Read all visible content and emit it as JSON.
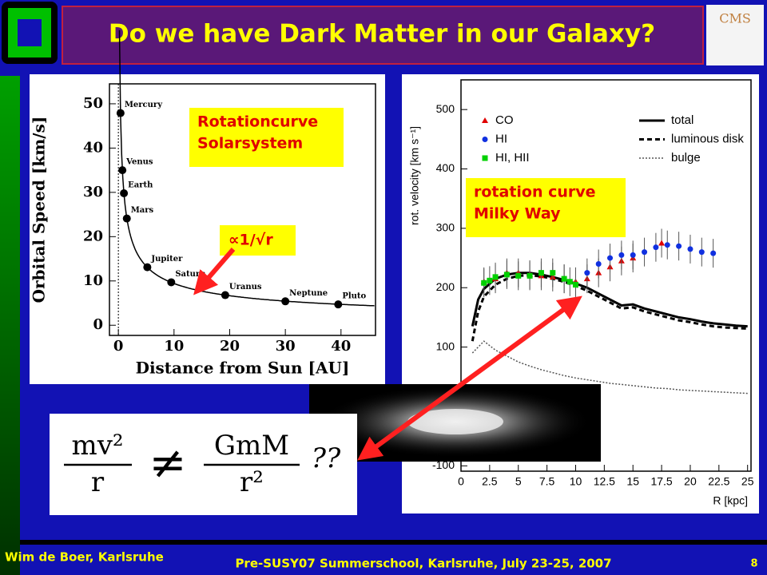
{
  "slide": {
    "title": "Do we have Dark Matter in our Galaxy?",
    "logo_text": "CMS",
    "footer": {
      "author": "Wim de Boer, Karlsruhe",
      "event": "Pre-SUSY07 Summerschool, Karlsruhe, July 23-25, 2007",
      "page": "8"
    },
    "formula": {
      "lhs_num": "mv²",
      "lhs_den": "r",
      "op": "≠",
      "rhs_num": "GmM",
      "rhs_den": "r²",
      "suffix": "??"
    }
  },
  "chart_data": [
    {
      "type": "scatter",
      "xlabel": "Distance from Sun [AU]",
      "ylabel": "Orbital Speed [km/s]",
      "x": [
        0.39,
        0.72,
        1,
        1.52,
        5.2,
        9.5,
        19.2,
        30,
        39.5
      ],
      "values": [
        47.9,
        35,
        29.8,
        24.1,
        13.1,
        9.7,
        6.8,
        5.4,
        4.7
      ],
      "point_labels": [
        "Mercury",
        "Venus",
        "Earth",
        "Mars",
        "Jupiter",
        "Saturn",
        "Uranus",
        "Neptune",
        "Pluto"
      ],
      "color": "#000000",
      "xlim": [
        -1.6,
        46.2
      ],
      "ylim": [
        -2.3,
        54.5
      ],
      "xticks": [
        0,
        10,
        20,
        30,
        40
      ],
      "yticks": [
        0,
        10,
        20,
        30,
        40,
        50
      ],
      "annotation": [
        "Rotationcurve",
        "Solarsystem"
      ],
      "fit_label": "∝1/√r"
    },
    {
      "type": "line",
      "xlabel": "R [kpc]",
      "ylabel": "rot. velocity [km s⁻¹]",
      "x": [
        1,
        1.5,
        2,
        3,
        4,
        5,
        6,
        7,
        8,
        9,
        10,
        11,
        12,
        13,
        14,
        15,
        16,
        17,
        18,
        19,
        20,
        21,
        22,
        23,
        24,
        25
      ],
      "series": [
        {
          "name": "total",
          "color": "#000000",
          "dash": "solid",
          "values": [
            135,
            180,
            198,
            215,
            222,
            225,
            225,
            222,
            218,
            213,
            207,
            200,
            190,
            180,
            170,
            172,
            165,
            160,
            155,
            150,
            147,
            143,
            140,
            138,
            136,
            135
          ]
        },
        {
          "name": "luminous disk",
          "color": "#000000",
          "dash": "dashed",
          "values": [
            110,
            160,
            185,
            205,
            215,
            220,
            221,
            219,
            215,
            210,
            203,
            195,
            185,
            175,
            165,
            167,
            160,
            155,
            150,
            145,
            142,
            138,
            135,
            133,
            132,
            131
          ]
        },
        {
          "name": "bulge",
          "color": "#555555",
          "dash": "dotted",
          "values": [
            90,
            100,
            110,
            95,
            85,
            75,
            68,
            62,
            57,
            52,
            48,
            45,
            42,
            39,
            37,
            35,
            33,
            31,
            30,
            28,
            27,
            26,
            25,
            24,
            23,
            22
          ]
        }
      ],
      "points": [
        {
          "name": "CO",
          "color": "#e00000",
          "marker": "triangle",
          "x": [
            2,
            3,
            4,
            5,
            6,
            7,
            8,
            9,
            10,
            11,
            12,
            13,
            14,
            15,
            17.5
          ],
          "values": [
            210,
            215,
            225,
            225,
            222,
            220,
            218,
            215,
            210,
            215,
            225,
            235,
            245,
            250,
            275
          ]
        },
        {
          "name": "HI",
          "color": "#1030e0",
          "marker": "circle",
          "x": [
            11,
            12,
            13,
            14,
            15,
            16,
            17,
            18,
            19,
            20,
            21,
            22
          ],
          "values": [
            225,
            240,
            250,
            255,
            255,
            260,
            268,
            272,
            270,
            265,
            260,
            258
          ]
        },
        {
          "name": "HI, HII",
          "color": "#00d000",
          "marker": "square",
          "x": [
            2,
            2.5,
            3,
            4,
            5,
            6,
            7,
            8,
            9,
            9.5,
            10
          ],
          "values": [
            208,
            212,
            218,
            222,
            220,
            220,
            225,
            225,
            215,
            210,
            205
          ]
        }
      ],
      "xlim": [
        0,
        25.3
      ],
      "ylim": [
        -109,
        550
      ],
      "xticks": [
        0,
        2.5,
        5,
        7.5,
        10,
        12.5,
        15,
        17.5,
        20,
        22.5,
        25
      ],
      "yticks": [
        -100,
        100,
        200,
        300,
        400,
        500
      ],
      "annotation": [
        "rotation curve",
        "Milky Way"
      ]
    }
  ]
}
